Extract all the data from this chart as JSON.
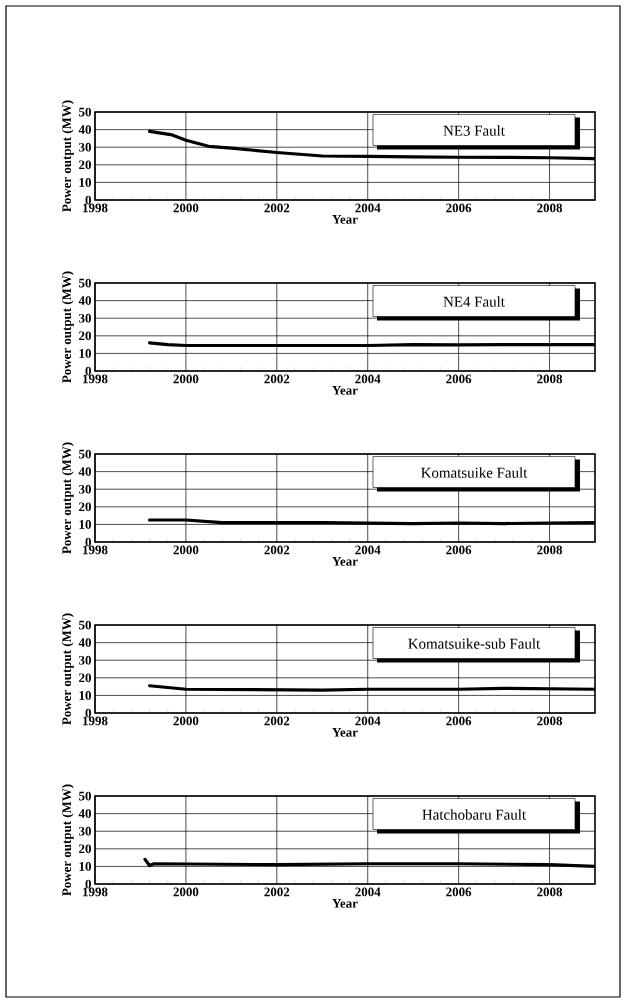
{
  "chart_data": [
    {
      "type": "line",
      "title": "NE3 Fault",
      "xlabel": "Year",
      "ylabel": "Power output (MW)",
      "color": "#000000",
      "grid": true,
      "x": [
        1999.2,
        1999.7,
        2000.0,
        2000.5,
        2001.0,
        2002.0,
        2003.0,
        2004.0,
        2005.0,
        2006.0,
        2007.0,
        2008.0,
        2009.0
      ],
      "values": [
        39,
        37,
        34,
        30.5,
        29.5,
        27,
        25,
        24.8,
        24.5,
        24.3,
        24.2,
        24,
        23.5
      ],
      "xlim": [
        1998,
        2009
      ],
      "ylim": [
        0,
        50
      ],
      "xticks": [
        1998,
        2000,
        2002,
        2004,
        2006,
        2008
      ],
      "yticks": [
        0,
        10,
        20,
        30,
        40,
        50
      ]
    },
    {
      "type": "line",
      "title": "NE4 Fault",
      "xlabel": "Year",
      "ylabel": "Power output (MW)",
      "color": "#000000",
      "grid": true,
      "x": [
        1999.2,
        1999.6,
        2000.0,
        2002.0,
        2004.0,
        2005.0,
        2006.0,
        2007.0,
        2008.0,
        2009.0
      ],
      "values": [
        16,
        15,
        14.5,
        14.5,
        14.5,
        15,
        14.8,
        15,
        15,
        15
      ],
      "xlim": [
        1998,
        2009
      ],
      "ylim": [
        0,
        50
      ],
      "xticks": [
        1998,
        2000,
        2002,
        2004,
        2006,
        2008
      ],
      "yticks": [
        0,
        10,
        20,
        30,
        40,
        50
      ]
    },
    {
      "type": "line",
      "title": "Komatsuike Fault",
      "xlabel": "Year",
      "ylabel": "Power output (MW)",
      "color": "#000000",
      "grid": true,
      "x": [
        1999.2,
        2000.0,
        2000.8,
        2003.0,
        2005.0,
        2006.0,
        2007.0,
        2008.0,
        2009.0
      ],
      "values": [
        12.5,
        12.5,
        11,
        11,
        10.5,
        10.8,
        10.5,
        10.8,
        11
      ],
      "xlim": [
        1998,
        2009
      ],
      "ylim": [
        0,
        50
      ],
      "xticks": [
        1998,
        2000,
        2002,
        2004,
        2006,
        2008
      ],
      "yticks": [
        0,
        10,
        20,
        30,
        40,
        50
      ]
    },
    {
      "type": "line",
      "title": "Komatsuike-sub Fault",
      "xlabel": "Year",
      "ylabel": "Power output (MW)",
      "color": "#000000",
      "grid": true,
      "x": [
        1999.2,
        2000.0,
        2003.0,
        2004.0,
        2006.0,
        2007.0,
        2009.0
      ],
      "values": [
        15.5,
        13.5,
        13,
        13.5,
        13.5,
        14,
        13.5
      ],
      "xlim": [
        1998,
        2009
      ],
      "ylim": [
        0,
        50
      ],
      "xticks": [
        1998,
        2000,
        2002,
        2004,
        2006,
        2008
      ],
      "yticks": [
        0,
        10,
        20,
        30,
        40,
        50
      ]
    },
    {
      "type": "line",
      "title": "Hatchobaru Fault",
      "xlabel": "Year",
      "ylabel": "Power output (MW)",
      "color": "#000000",
      "grid": true,
      "x": [
        1999.1,
        1999.2,
        1999.3,
        2002.0,
        2004.0,
        2006.0,
        2008.0,
        2009.0
      ],
      "values": [
        14,
        10.5,
        11.5,
        11,
        11.5,
        11.5,
        11,
        10
      ],
      "xlim": [
        1998,
        2009
      ],
      "ylim": [
        0,
        50
      ],
      "xticks": [
        1998,
        2000,
        2002,
        2004,
        2006,
        2008
      ],
      "yticks": [
        0,
        10,
        20,
        30,
        40,
        50
      ]
    }
  ]
}
